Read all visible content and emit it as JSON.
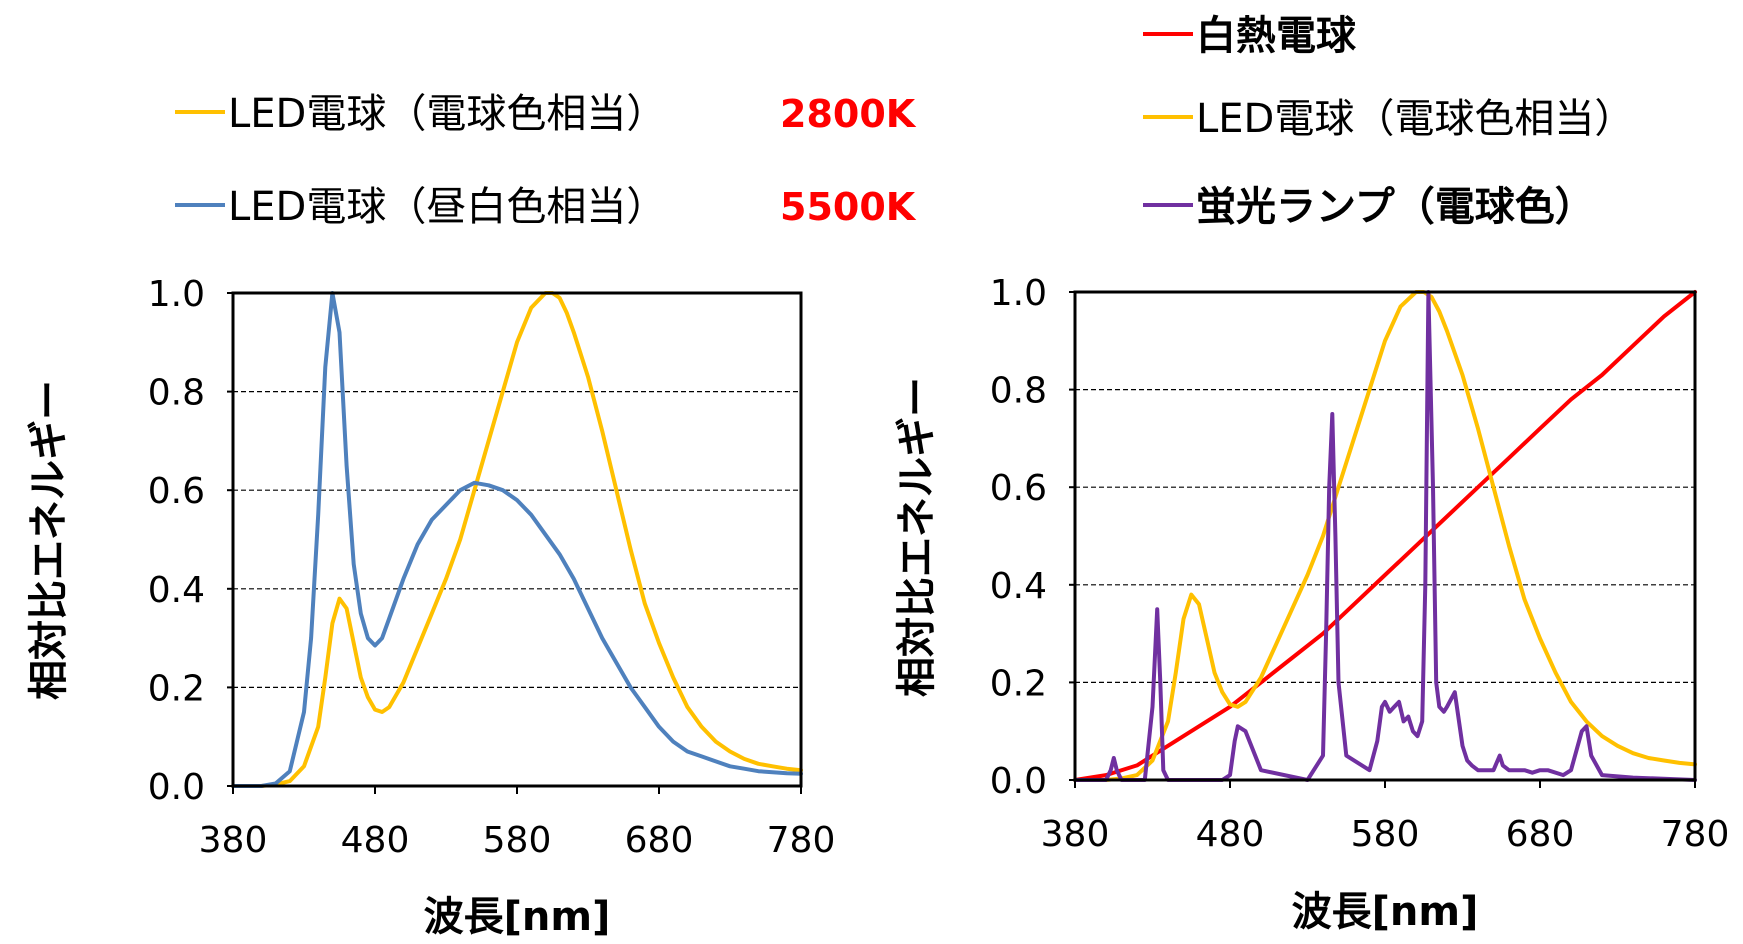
{
  "chart_data": [
    {
      "type": "line",
      "xlabel": "波長[nm]",
      "ylabel": "相対比エネルギー",
      "xlim": [
        380,
        780
      ],
      "ylim": [
        0,
        1.0
      ],
      "xticks": [
        "380",
        "480",
        "580",
        "680",
        "780"
      ],
      "yticks": [
        "0.0",
        "0.2",
        "0.4",
        "0.6",
        "0.8",
        "1.0"
      ],
      "grid": "horizontal dashed",
      "legend_position": "top",
      "series": [
        {
          "name": "LED電球（電球色相当）",
          "temperature": "2800K",
          "color": "#ffc000",
          "x": [
            380,
            400,
            410,
            420,
            430,
            440,
            445,
            450,
            455,
            460,
            465,
            470,
            475,
            480,
            485,
            490,
            500,
            510,
            520,
            530,
            540,
            550,
            560,
            570,
            580,
            590,
            600,
            605,
            610,
            615,
            620,
            630,
            640,
            650,
            660,
            670,
            680,
            690,
            700,
            710,
            720,
            730,
            740,
            750,
            760,
            770,
            780
          ],
          "y": [
            0.0,
            0.0,
            0.003,
            0.01,
            0.04,
            0.12,
            0.22,
            0.33,
            0.38,
            0.36,
            0.29,
            0.22,
            0.18,
            0.155,
            0.15,
            0.16,
            0.21,
            0.28,
            0.35,
            0.42,
            0.5,
            0.6,
            0.7,
            0.8,
            0.9,
            0.97,
            1.0,
            1.0,
            0.99,
            0.96,
            0.92,
            0.83,
            0.72,
            0.6,
            0.48,
            0.37,
            0.29,
            0.22,
            0.16,
            0.12,
            0.09,
            0.07,
            0.055,
            0.045,
            0.04,
            0.035,
            0.032
          ]
        },
        {
          "name": "LED電球（昼白色相当）",
          "temperature": "5500K",
          "color": "#4f81bd",
          "x": [
            380,
            400,
            410,
            420,
            430,
            435,
            440,
            445,
            450,
            455,
            460,
            465,
            470,
            475,
            480,
            485,
            490,
            500,
            510,
            520,
            530,
            540,
            550,
            560,
            570,
            580,
            590,
            600,
            610,
            620,
            630,
            640,
            650,
            660,
            670,
            680,
            690,
            700,
            710,
            720,
            730,
            740,
            750,
            760,
            770,
            780
          ],
          "y": [
            0.0,
            0.0,
            0.005,
            0.03,
            0.15,
            0.3,
            0.55,
            0.85,
            1.0,
            0.92,
            0.65,
            0.45,
            0.35,
            0.3,
            0.285,
            0.3,
            0.34,
            0.42,
            0.49,
            0.54,
            0.57,
            0.6,
            0.615,
            0.61,
            0.6,
            0.58,
            0.55,
            0.51,
            0.47,
            0.42,
            0.36,
            0.3,
            0.25,
            0.2,
            0.16,
            0.12,
            0.09,
            0.07,
            0.06,
            0.05,
            0.04,
            0.035,
            0.03,
            0.028,
            0.026,
            0.025
          ]
        }
      ]
    },
    {
      "type": "line",
      "xlabel": "波長[nm]",
      "ylabel": "相対比エネルギー",
      "xlim": [
        380,
        780
      ],
      "ylim": [
        0,
        1.0
      ],
      "xticks": [
        "380",
        "480",
        "580",
        "680",
        "780"
      ],
      "yticks": [
        "0.0",
        "0.2",
        "0.4",
        "0.6",
        "0.8",
        "1.0"
      ],
      "grid": "horizontal dashed",
      "legend_position": "top",
      "series": [
        {
          "name": "白熱電球",
          "color": "#ff0000",
          "x": [
            380,
            400,
            420,
            440,
            460,
            480,
            500,
            520,
            540,
            560,
            580,
            600,
            620,
            640,
            660,
            680,
            700,
            720,
            740,
            760,
            780
          ],
          "y": [
            0.0,
            0.01,
            0.03,
            0.07,
            0.11,
            0.15,
            0.2,
            0.25,
            0.3,
            0.36,
            0.42,
            0.48,
            0.54,
            0.6,
            0.66,
            0.72,
            0.78,
            0.83,
            0.89,
            0.95,
            1.0
          ]
        },
        {
          "name": "LED電球（電球色相当）",
          "color": "#ffc000",
          "x": [
            380,
            400,
            410,
            420,
            430,
            440,
            445,
            450,
            455,
            460,
            465,
            470,
            475,
            480,
            485,
            490,
            500,
            510,
            520,
            530,
            540,
            550,
            560,
            570,
            580,
            590,
            600,
            605,
            610,
            615,
            620,
            630,
            640,
            650,
            660,
            670,
            680,
            690,
            700,
            710,
            720,
            730,
            740,
            750,
            760,
            770,
            780
          ],
          "y": [
            0.0,
            0.0,
            0.003,
            0.01,
            0.04,
            0.12,
            0.22,
            0.33,
            0.38,
            0.36,
            0.29,
            0.22,
            0.18,
            0.155,
            0.15,
            0.16,
            0.21,
            0.28,
            0.35,
            0.42,
            0.5,
            0.6,
            0.7,
            0.8,
            0.9,
            0.97,
            1.0,
            1.0,
            0.99,
            0.96,
            0.92,
            0.83,
            0.72,
            0.6,
            0.48,
            0.37,
            0.29,
            0.22,
            0.16,
            0.12,
            0.09,
            0.07,
            0.055,
            0.045,
            0.04,
            0.035,
            0.032
          ]
        },
        {
          "name": "蛍光ランプ（電球色）",
          "color": "#7030a0",
          "x": [
            380,
            400,
            403,
            405,
            407,
            410,
            425,
            430,
            433,
            435,
            437,
            440,
            445,
            475,
            480,
            483,
            485,
            490,
            500,
            530,
            540,
            542,
            544,
            546,
            548,
            550,
            555,
            570,
            575,
            578,
            580,
            583,
            586,
            589,
            592,
            595,
            598,
            601,
            604,
            606,
            608,
            611,
            613,
            615,
            618,
            620,
            625,
            630,
            633,
            636,
            640,
            650,
            654,
            656,
            660,
            670,
            675,
            680,
            685,
            695,
            700,
            707,
            710,
            713,
            720,
            740,
            780
          ],
          "y": [
            0.0,
            0.0,
            0.02,
            0.045,
            0.02,
            0.0,
            0.0,
            0.15,
            0.35,
            0.2,
            0.02,
            0.0,
            0.0,
            0.0,
            0.01,
            0.08,
            0.11,
            0.1,
            0.02,
            0.0,
            0.05,
            0.3,
            0.6,
            0.75,
            0.5,
            0.2,
            0.05,
            0.02,
            0.08,
            0.15,
            0.16,
            0.14,
            0.15,
            0.16,
            0.12,
            0.13,
            0.1,
            0.09,
            0.12,
            0.4,
            1.0,
            0.6,
            0.2,
            0.15,
            0.14,
            0.15,
            0.18,
            0.07,
            0.04,
            0.03,
            0.02,
            0.02,
            0.05,
            0.03,
            0.02,
            0.02,
            0.015,
            0.02,
            0.02,
            0.01,
            0.02,
            0.1,
            0.11,
            0.05,
            0.01,
            0.005,
            0.0
          ]
        }
      ]
    }
  ]
}
